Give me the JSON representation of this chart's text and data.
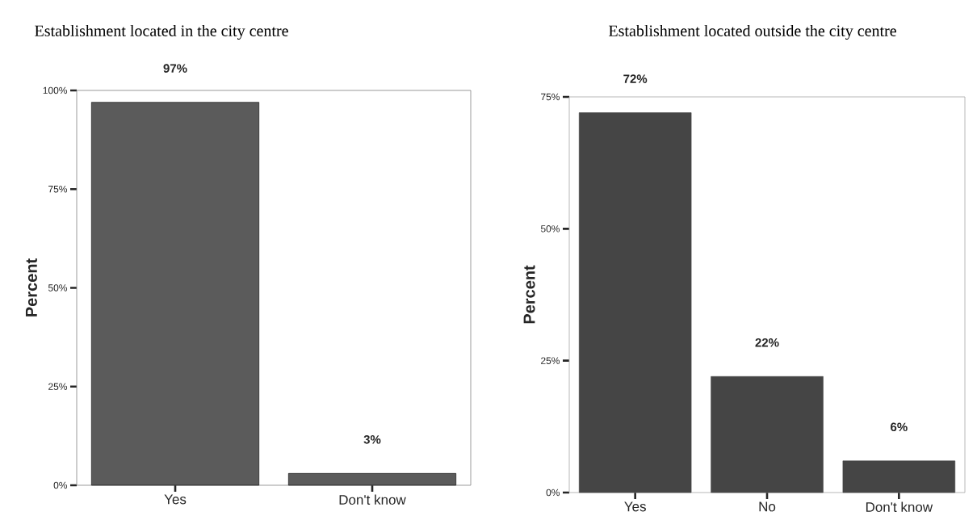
{
  "chart_data": [
    {
      "type": "bar",
      "title": "Establishment located in the city centre",
      "ylabel": "Percent",
      "categories": [
        "Yes",
        "Don't know"
      ],
      "values": [
        97,
        3
      ],
      "value_labels": [
        "97%",
        "3%"
      ],
      "color": "#5b5b5b",
      "ylim": [
        0,
        100
      ],
      "yticks": [
        {
          "value": 0,
          "label": "0%"
        },
        {
          "value": 25,
          "label": "25%"
        },
        {
          "value": 50,
          "label": "50%"
        },
        {
          "value": 75,
          "label": "75%"
        },
        {
          "value": 100,
          "label": "100%"
        }
      ]
    },
    {
      "type": "bar",
      "title": "Establishment located outside the city centre",
      "ylabel": "Percent",
      "categories": [
        "Yes",
        "No",
        "Don't know"
      ],
      "values": [
        72,
        22,
        6
      ],
      "value_labels": [
        "72%",
        "22%",
        "6%"
      ],
      "color": "#454545",
      "ylim": [
        0,
        75
      ],
      "yticks": [
        {
          "value": 0,
          "label": "0%"
        },
        {
          "value": 25,
          "label": "25%"
        },
        {
          "value": 50,
          "label": "50%"
        },
        {
          "value": 75,
          "label": "75%"
        }
      ]
    }
  ]
}
